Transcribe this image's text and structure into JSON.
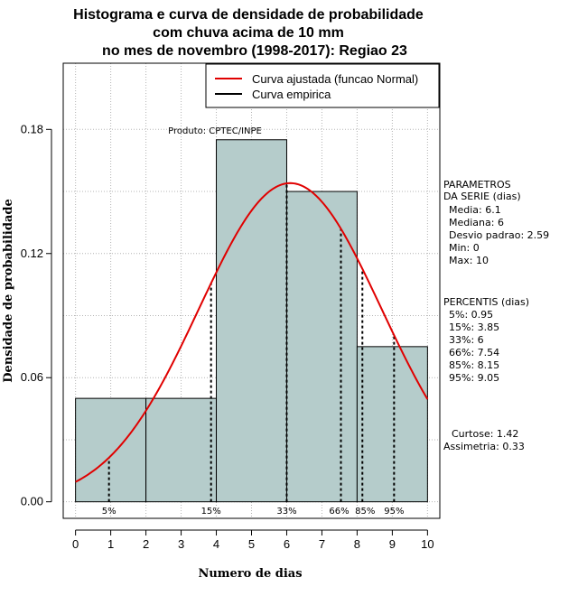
{
  "colors": {
    "bar_fill": "#b5cccb",
    "curve": "#e00000",
    "grid": "#b4b4b4",
    "legend_black": "#000000"
  },
  "chart_data": {
    "type": "bar",
    "title_lines": [
      "Histograma e curva de densidade de probabilidade",
      "com chuva acima de 10 mm",
      "no mes de novembro (1998-2017): Regiao 23"
    ],
    "xlabel": "Numero de dias",
    "ylabel": "Densidade de probabilidade",
    "xlim": [
      -0.35,
      10.35
    ],
    "ylim": [
      -0.008,
      0.212
    ],
    "x_ticks": [
      0,
      1,
      2,
      3,
      4,
      5,
      6,
      7,
      8,
      9,
      10
    ],
    "x_tick_labels": [
      "0",
      "1",
      "2",
      "3",
      "4",
      "5",
      "6",
      "7",
      "8",
      "9",
      "10"
    ],
    "y_ticks": [
      0.0,
      0.06,
      0.12,
      0.18
    ],
    "y_tick_labels": [
      "0.00",
      "0.06",
      "0.12",
      "0.18"
    ],
    "bins": [
      {
        "start": 0,
        "end": 2,
        "density": 0.05
      },
      {
        "start": 2,
        "end": 4,
        "density": 0.05
      },
      {
        "start": 4,
        "end": 6,
        "density": 0.175
      },
      {
        "start": 6,
        "end": 8,
        "density": 0.15
      },
      {
        "start": 8,
        "end": 10,
        "density": 0.075
      }
    ],
    "normal_curve": {
      "mean": 6.1,
      "sd": 2.59
    },
    "percentile_lines": [
      {
        "label": "5%",
        "x": 0.95
      },
      {
        "label": "15%",
        "x": 3.85
      },
      {
        "label": "33%",
        "x": 6
      },
      {
        "label": "66%",
        "x": 7.54
      },
      {
        "label": "85%",
        "x": 8.15
      },
      {
        "label": "95%",
        "x": 9.05
      }
    ],
    "legend": [
      {
        "label": "Curva ajustada (funcao Normal)",
        "color": "#e00000"
      },
      {
        "label": "Curva empirica",
        "color": "#000000"
      }
    ],
    "annotation": "Produto: CPTEC/INPE"
  },
  "side_panel": {
    "params_title_1": "PARAMETROS",
    "params_title_2": "DA SERIE (dias)",
    "media": "Media: 6.1",
    "mediana": "Mediana: 6",
    "desvio": "Desvio padrao: 2.59",
    "min": "Min: 0",
    "max": "Max: 10",
    "percentis_title": "PERCENTIS (dias)",
    "p5": "5%: 0.95",
    "p15": "15%: 3.85",
    "p33": "33%: 6",
    "p66": "66%: 7.54",
    "p85": "85%: 8.15",
    "p95": "95%: 9.05",
    "curtose": "Curtose: 1.42",
    "assimetria": "Assimetria: 0.33"
  }
}
